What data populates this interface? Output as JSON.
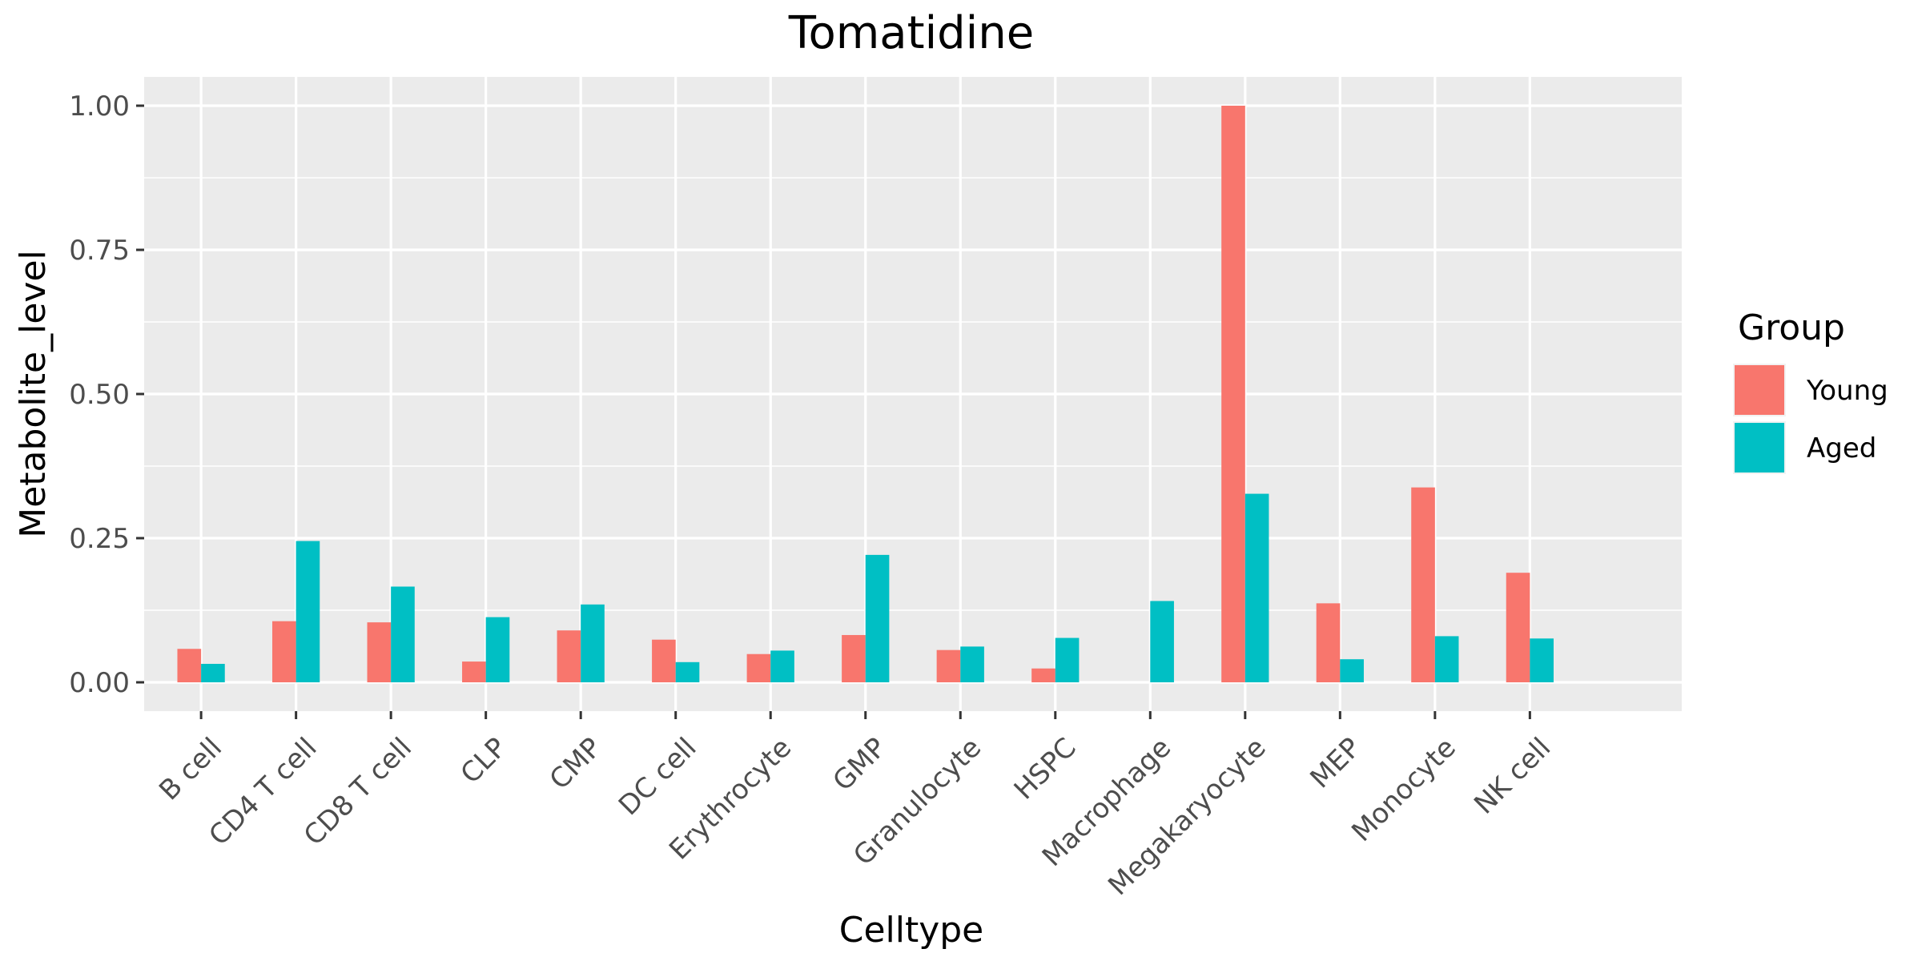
{
  "chart_data": {
    "type": "bar",
    "title": "Tomatidine",
    "xlabel": "Celltype",
    "ylabel": "Metabolite_level",
    "categories": [
      "B cell",
      "CD4 T cell",
      "CD8 T cell",
      "CLP",
      "CMP",
      "DC cell",
      "Erythrocyte",
      "GMP",
      "Granulocyte",
      "HSPC",
      "Macrophage",
      "Megakaryocyte",
      "MEP",
      "Monocyte",
      "NK cell"
    ],
    "series": [
      {
        "name": "Young",
        "color": "#F8766D",
        "values": [
          0.058,
          0.106,
          0.104,
          0.036,
          0.09,
          0.074,
          0.049,
          0.082,
          0.056,
          0.024,
          null,
          1.0,
          0.137,
          0.338,
          0.19
        ]
      },
      {
        "name": "Aged",
        "color": "#00BFC4",
        "values": [
          0.032,
          0.245,
          0.166,
          0.113,
          0.135,
          0.035,
          0.055,
          0.221,
          0.062,
          0.077,
          0.141,
          0.327,
          0.04,
          0.08,
          0.076
        ]
      }
    ],
    "ylim": [
      -0.05,
      1.05
    ],
    "yticks": [
      0.0,
      0.25,
      0.5,
      0.75,
      1.0
    ],
    "ytick_labels": [
      "0.00",
      "0.25",
      "0.50",
      "0.75",
      "1.00"
    ],
    "grid": true,
    "legend": {
      "title": "Group",
      "position": "right"
    }
  }
}
